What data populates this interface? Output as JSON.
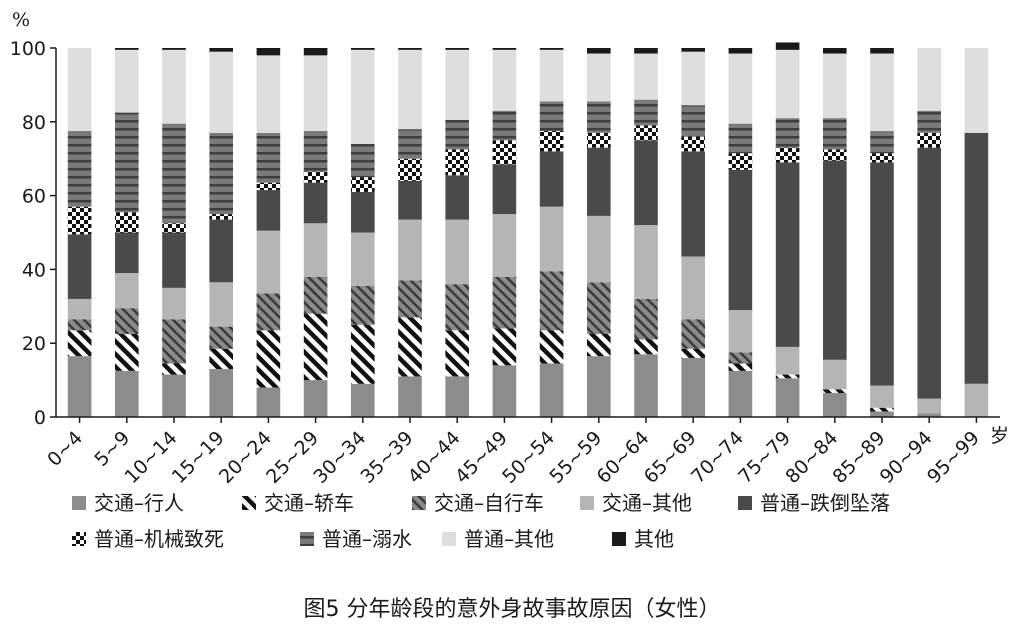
{
  "caption": "图5  分年龄段的意外身故事故原因（女性）",
  "chart_data": {
    "type": "bar",
    "stacked": true,
    "y_unit": "%",
    "x_unit": "岁",
    "ylim": [
      0,
      100
    ],
    "yticks": [
      0,
      20,
      40,
      60,
      80,
      100
    ],
    "categories": [
      "0~4",
      "5~9",
      "10~14",
      "15~19",
      "20~24",
      "25~29",
      "30~34",
      "35~39",
      "40~44",
      "45~49",
      "50~54",
      "55~59",
      "60~64",
      "65~69",
      "70~74",
      "75~79",
      "80~84",
      "85~89",
      "90~94",
      "95~99"
    ],
    "series": [
      {
        "name": "交通–行人",
        "pattern": "solid-mid",
        "color": "#8c8c8c",
        "values": [
          16.5,
          12.5,
          11.5,
          13,
          8,
          10,
          9,
          11,
          11,
          14,
          14.5,
          16.5,
          17,
          16,
          12.5,
          10.5,
          6.5,
          1.5,
          1,
          0
        ]
      },
      {
        "name": "交通–轿车",
        "pattern": "hatch-black-white",
        "color": "#ffffff",
        "values": [
          7,
          10,
          3,
          5.5,
          15.5,
          18,
          16,
          16,
          12.5,
          10,
          9,
          6,
          4,
          2.5,
          2,
          1,
          1,
          1,
          0,
          0
        ]
      },
      {
        "name": "交通–自行车",
        "pattern": "hatch-gray",
        "color": "#7a7a7a",
        "values": [
          3,
          7,
          12,
          6,
          10,
          10,
          10.5,
          10,
          12.5,
          14,
          16,
          14,
          11,
          8,
          3,
          0,
          0,
          0,
          0,
          0
        ]
      },
      {
        "name": "交通–其他",
        "pattern": "solid-light",
        "color": "#b5b5b5",
        "values": [
          5.5,
          9.5,
          8.5,
          12,
          17,
          14.5,
          14.5,
          16.5,
          17.5,
          17,
          17.5,
          18,
          20,
          17,
          11.5,
          7.5,
          8,
          6,
          4,
          9
        ]
      },
      {
        "name": "普通–跌倒坠落",
        "pattern": "solid-dark",
        "color": "#4a4a4a",
        "values": [
          17.5,
          11,
          15,
          17,
          11,
          11,
          11,
          10.5,
          12,
          13.5,
          15,
          18.5,
          23,
          28.5,
          38,
          50,
          54,
          60.5,
          68,
          68
        ]
      },
      {
        "name": "普通–机械致死",
        "pattern": "checker",
        "color": "#ffffff",
        "values": [
          7.5,
          5.5,
          2.5,
          1.5,
          2,
          3,
          4,
          6,
          7,
          6.5,
          5.5,
          4,
          4,
          4,
          4.5,
          4,
          3,
          2.5,
          4,
          0
        ]
      },
      {
        "name": "普通–溺水",
        "pattern": "hstripe",
        "color": "#6e6e6e",
        "values": [
          20.5,
          27,
          27,
          22,
          13.5,
          11,
          9,
          8,
          8,
          8,
          8,
          8.5,
          7,
          8.5,
          8,
          8,
          8.5,
          6,
          6,
          0
        ]
      },
      {
        "name": "普通–其他",
        "pattern": "solid-verylight",
        "color": "#dedede",
        "values": [
          22.5,
          17,
          20,
          22,
          21,
          20.5,
          25.5,
          21.5,
          19,
          16.5,
          14,
          13,
          12.5,
          14.5,
          19,
          18.5,
          17.5,
          21,
          17,
          23
        ]
      },
      {
        "name": "其他",
        "pattern": "solid-black",
        "color": "#1a1a1a",
        "values": [
          0,
          0.5,
          0.5,
          1,
          2,
          2,
          0.5,
          0.5,
          0.5,
          0.5,
          0.5,
          1.5,
          1.5,
          1,
          1.5,
          2,
          1.5,
          1.5,
          0,
          0
        ]
      }
    ],
    "legend_position": "bottom",
    "grid": false
  }
}
